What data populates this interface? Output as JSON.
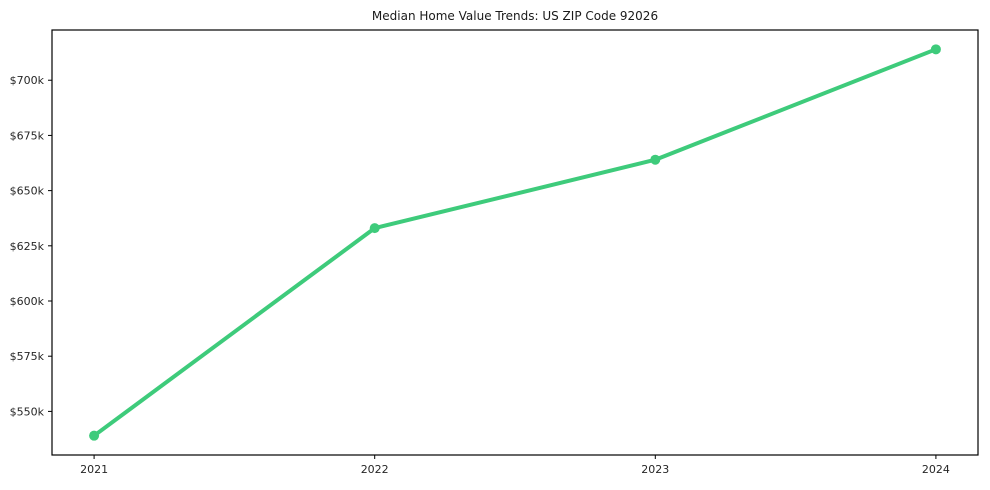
{
  "chart_data": {
    "type": "line",
    "title": "Median Home Value Trends: US ZIP Code 92026",
    "xlabel": "",
    "ylabel": "",
    "categories": [
      "2021",
      "2022",
      "2023",
      "2024"
    ],
    "x": [
      2021,
      2022,
      2023,
      2024
    ],
    "series": [
      {
        "name": "Median Home Value",
        "values": [
          539000,
          633000,
          664000,
          714000
        ]
      }
    ],
    "y_ticks": [
      550000,
      575000,
      600000,
      625000,
      650000,
      675000,
      700000
    ],
    "y_tick_labels": [
      "$550k",
      "$575k",
      "$600k",
      "$625k",
      "$650k",
      "$675k",
      "$700k"
    ],
    "xlim": [
      2020.85,
      2024.15
    ],
    "ylim": [
      530250,
      722750
    ],
    "grid": false,
    "legend_position": "none",
    "colors": {
      "line": "#3ecb7b",
      "marker": "#3ecb7b",
      "frame": "#000000",
      "text": "#262626",
      "background": "#ffffff"
    }
  }
}
